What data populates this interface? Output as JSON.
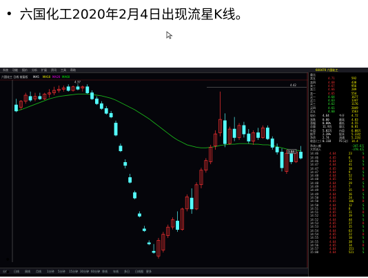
{
  "slide": {
    "bullet": "•",
    "title": "六国化工2020年2月4日出现流星K线。",
    "extra_bullets": [
      "•",
      "•"
    ]
  },
  "terminal": {
    "menu_items": [
      "系统",
      "功能",
      "报价",
      "分析",
      "扩展",
      "资讯",
      "工具",
      "帮助"
    ],
    "chart_header": "六国化工 日线 前复权",
    "indicators": [
      "MA5",
      "MA10",
      "MA20",
      "MA60"
    ],
    "indicator_colors": [
      "#ffffff",
      "#ffff00",
      "#ff00ff",
      "#00ff00"
    ],
    "top_price_label": "4.42",
    "mid_price_label": "4.37",
    "right_box_label": "3.84",
    "colors": {
      "up": "#ff3232",
      "down": "#54ffff",
      "ma": "#19b319",
      "grid": "#7a1d1d",
      "bg": "#05050a"
    },
    "bottom_tabs": [
      "分时",
      "日线",
      "周线",
      "月线",
      "1分钟",
      "5分钟",
      "15分钟",
      "30分钟",
      "60分钟",
      "季线",
      "年线",
      "多日",
      "日线图",
      "更多"
    ],
    "right_panel": {
      "code": "600470",
      "name": "六国化工",
      "order_book": [
        {
          "label": "委比",
          "price": "",
          "vol": "",
          "color": "#ff3232"
        },
        {
          "label": "卖五",
          "price": "4.71",
          "vol": "592"
        },
        {
          "label": "卖四",
          "price": "4.68",
          "vol": "438"
        },
        {
          "label": "卖三",
          "price": "4.67",
          "vol": "956"
        },
        {
          "label": "卖二",
          "price": "4.66",
          "vol": "289"
        },
        {
          "label": "卖一",
          "price": "4.65",
          "vol": "554"
        },
        {
          "label": "买一",
          "price": "4.64",
          "vol": "1677"
        },
        {
          "label": "买二",
          "price": "4.63",
          "vol": "1347"
        },
        {
          "label": "买三",
          "price": "4.62",
          "vol": "1176"
        },
        {
          "label": "买四",
          "price": "4.61",
          "vol": "2049"
        },
        {
          "label": "买五",
          "price": "4.60",
          "vol": "1563"
        }
      ],
      "stats": [
        {
          "label": "现价",
          "value": "4.64",
          "label2": "今开",
          "value2": "4.72"
        },
        {
          "label": "涨跌",
          "value": "0.00",
          "label2": "最高",
          "value2": "4.83"
        },
        {
          "label": "涨幅",
          "value": "0.00%",
          "label2": "最低",
          "value2": "4.55"
        },
        {
          "label": "总量",
          "value": "11.9万",
          "label2": "量比",
          "value2": "0.81"
        },
        {
          "label": "外盘",
          "value": "5.82万",
          "label2": "内盘",
          "value2": "6.08万"
        },
        {
          "label": "换手",
          "value": "2.28%",
          "label2": "股本",
          "value2": "5.22亿"
        },
        {
          "label": "净资",
          "value": "2.74",
          "label2": "流通",
          "value2": "5.22亿"
        },
        {
          "label": "收益(三)",
          "value": "0.110",
          "label2": "PE(动)",
          "value2": "14.4"
        }
      ],
      "flow_labels": [
        "净流入额",
        "大宗流入"
      ],
      "flow_values": [
        "-347.6万",
        "-378.4万"
      ],
      "ticks": [
        {
          "time": "14:46",
          "price": "4.64",
          "vol": "23",
          "dir": "S"
        },
        {
          "time": "14:46",
          "price": "4.65",
          "vol": "6",
          "dir": "B"
        },
        {
          "time": "14:46",
          "price": "4.64",
          "vol": "13",
          "dir": "S"
        },
        {
          "time": "14:47",
          "price": "4.64",
          "vol": "41",
          "dir": "S"
        },
        {
          "time": "14:47",
          "price": "4.65",
          "vol": "18",
          "dir": "B"
        },
        {
          "time": "14:47",
          "price": "4.64",
          "vol": "9",
          "dir": "S"
        },
        {
          "time": "14:48",
          "price": "4.64",
          "vol": "52",
          "dir": "S"
        },
        {
          "time": "14:48",
          "price": "4.65",
          "vol": "11",
          "dir": "B"
        },
        {
          "time": "14:48",
          "price": "4.64",
          "vol": "29",
          "dir": "S"
        },
        {
          "time": "14:49",
          "price": "4.64",
          "vol": "7",
          "dir": "S"
        },
        {
          "time": "14:49",
          "price": "4.65",
          "vol": "35",
          "dir": "B"
        },
        {
          "time": "14:49",
          "price": "4.64",
          "vol": "16",
          "dir": "S"
        },
        {
          "time": "14:50",
          "price": "4.64",
          "vol": "24",
          "dir": "S"
        },
        {
          "time": "14:50",
          "price": "4.65",
          "vol": "106",
          "dir": "B"
        },
        {
          "time": "14:50",
          "price": "4.64",
          "vol": "12",
          "dir": "S"
        },
        {
          "time": "14:51",
          "price": "4.64",
          "vol": "8",
          "dir": "S"
        },
        {
          "time": "14:51",
          "price": "4.65",
          "vol": "31",
          "dir": "B"
        },
        {
          "time": "14:52",
          "price": "4.64",
          "vol": "19",
          "dir": "S"
        },
        {
          "time": "14:52",
          "price": "4.64",
          "vol": "44",
          "dir": "S"
        },
        {
          "time": "14:53",
          "price": "4.65",
          "vol": "27",
          "dir": "B"
        },
        {
          "time": "14:53",
          "price": "4.64",
          "vol": "15",
          "dir": "S"
        },
        {
          "time": "14:54",
          "price": "4.64",
          "vol": "63",
          "dir": "S"
        },
        {
          "time": "14:54",
          "price": "4.65",
          "vol": "22",
          "dir": "B"
        },
        {
          "time": "14:55",
          "price": "4.64",
          "vol": "10",
          "dir": "S"
        },
        {
          "time": "14:55",
          "price": "4.64",
          "vol": "38",
          "dir": "S"
        },
        {
          "time": "14:56",
          "price": "4.65",
          "vol": "14",
          "dir": "B"
        },
        {
          "time": "14:57",
          "price": "4.64",
          "vol": "151",
          "dir": "S"
        },
        {
          "time": "15:00",
          "price": "4.64",
          "vol": "521",
          "dir": "S"
        }
      ]
    },
    "candles": [
      {
        "o": 4.5,
        "h": 4.6,
        "l": 4.38,
        "c": 4.4
      },
      {
        "o": 4.46,
        "h": 4.58,
        "l": 4.42,
        "c": 4.56
      },
      {
        "o": 4.56,
        "h": 4.7,
        "l": 4.52,
        "c": 4.66
      },
      {
        "o": 4.64,
        "h": 4.72,
        "l": 4.55,
        "c": 4.58
      },
      {
        "o": 4.6,
        "h": 4.7,
        "l": 4.56,
        "c": 4.64
      },
      {
        "o": 4.64,
        "h": 4.7,
        "l": 4.58,
        "c": 4.6
      },
      {
        "o": 4.6,
        "h": 4.7,
        "l": 4.58,
        "c": 4.68
      },
      {
        "o": 4.68,
        "h": 4.76,
        "l": 4.62,
        "c": 4.7
      },
      {
        "o": 4.7,
        "h": 4.8,
        "l": 4.66,
        "c": 4.74
      },
      {
        "o": 4.74,
        "h": 4.82,
        "l": 4.7,
        "c": 4.76
      },
      {
        "o": 4.76,
        "h": 4.82,
        "l": 4.72,
        "c": 4.78
      },
      {
        "o": 4.8,
        "h": 4.84,
        "l": 4.72,
        "c": 4.74
      },
      {
        "o": 4.74,
        "h": 4.82,
        "l": 4.72,
        "c": 4.8
      },
      {
        "o": 4.8,
        "h": 4.84,
        "l": 4.74,
        "c": 4.76
      },
      {
        "o": 4.78,
        "h": 4.82,
        "l": 4.72,
        "c": 4.8
      },
      {
        "o": 4.8,
        "h": 4.84,
        "l": 4.68,
        "c": 4.7
      },
      {
        "o": 4.7,
        "h": 4.74,
        "l": 4.58,
        "c": 4.6
      },
      {
        "o": 4.6,
        "h": 4.64,
        "l": 4.5,
        "c": 4.52
      },
      {
        "o": 4.52,
        "h": 4.56,
        "l": 4.42,
        "c": 4.44
      },
      {
        "o": 4.44,
        "h": 4.48,
        "l": 4.34,
        "c": 4.36
      },
      {
        "o": 4.36,
        "h": 4.4,
        "l": 4.28,
        "c": 4.3
      },
      {
        "o": 4.2,
        "h": 4.24,
        "l": 3.98,
        "c": 4.0
      },
      {
        "o": 3.82,
        "h": 3.86,
        "l": 3.72,
        "c": 3.74
      },
      {
        "o": 3.55,
        "h": 3.6,
        "l": 3.45,
        "c": 3.5
      },
      {
        "o": 3.3,
        "h": 3.36,
        "l": 3.2,
        "c": 3.22
      },
      {
        "o": 3.05,
        "h": 3.08,
        "l": 2.94,
        "c": 2.96
      },
      {
        "o": 2.7,
        "h": 2.74,
        "l": 2.64,
        "c": 2.66
      },
      {
        "o": 2.45,
        "h": 2.5,
        "l": 2.4,
        "c": 2.42
      },
      {
        "o": 2.22,
        "h": 2.26,
        "l": 2.18,
        "c": 2.2
      },
      {
        "o": 2.08,
        "h": 2.2,
        "l": 2.04,
        "c": 2.06
      },
      {
        "o": 2.0,
        "h": 2.3,
        "l": 1.96,
        "c": 2.26
      },
      {
        "o": 2.1,
        "h": 2.4,
        "l": 2.06,
        "c": 2.36
      },
      {
        "o": 2.34,
        "h": 2.52,
        "l": 2.3,
        "c": 2.48
      },
      {
        "o": 2.48,
        "h": 2.64,
        "l": 2.44,
        "c": 2.6
      },
      {
        "o": 2.58,
        "h": 2.74,
        "l": 2.4,
        "c": 2.44
      },
      {
        "o": 2.44,
        "h": 2.8,
        "l": 2.42,
        "c": 2.78
      },
      {
        "o": 2.78,
        "h": 3.02,
        "l": 2.74,
        "c": 2.98
      },
      {
        "o": 2.96,
        "h": 3.12,
        "l": 2.7,
        "c": 2.78
      },
      {
        "o": 2.78,
        "h": 3.22,
        "l": 2.76,
        "c": 3.18
      },
      {
        "o": 3.18,
        "h": 3.46,
        "l": 3.12,
        "c": 3.42
      },
      {
        "o": 3.42,
        "h": 3.62,
        "l": 3.38,
        "c": 3.58
      },
      {
        "o": 3.56,
        "h": 3.84,
        "l": 3.52,
        "c": 3.8
      },
      {
        "o": 3.82,
        "h": 4.08,
        "l": 3.76,
        "c": 4.02
      },
      {
        "o": 4.04,
        "h": 4.72,
        "l": 3.98,
        "c": 4.26
      },
      {
        "o": 4.24,
        "h": 4.36,
        "l": 3.8,
        "c": 3.86
      },
      {
        "o": 3.86,
        "h": 4.14,
        "l": 3.84,
        "c": 4.1
      },
      {
        "o": 4.1,
        "h": 4.3,
        "l": 3.9,
        "c": 3.96
      },
      {
        "o": 3.96,
        "h": 4.2,
        "l": 3.92,
        "c": 4.16
      },
      {
        "o": 4.16,
        "h": 4.22,
        "l": 3.96,
        "c": 4.02
      },
      {
        "o": 4.02,
        "h": 4.1,
        "l": 3.86,
        "c": 3.9
      },
      {
        "o": 3.9,
        "h": 4.08,
        "l": 3.84,
        "c": 4.04
      },
      {
        "o": 4.04,
        "h": 4.12,
        "l": 3.92,
        "c": 3.96
      },
      {
        "o": 3.96,
        "h": 4.16,
        "l": 3.94,
        "c": 4.12
      },
      {
        "o": 4.12,
        "h": 4.16,
        "l": 3.92,
        "c": 3.94
      },
      {
        "o": 3.94,
        "h": 3.98,
        "l": 3.76,
        "c": 3.8
      },
      {
        "o": 3.8,
        "h": 3.86,
        "l": 3.68,
        "c": 3.72
      },
      {
        "o": 3.72,
        "h": 3.78,
        "l": 3.4,
        "c": 3.46
      },
      {
        "o": 3.4,
        "h": 3.76,
        "l": 3.36,
        "c": 3.7
      },
      {
        "o": 3.7,
        "h": 3.76,
        "l": 3.52,
        "c": 3.56
      },
      {
        "o": 3.56,
        "h": 3.74,
        "l": 3.54,
        "c": 3.72
      },
      {
        "o": 3.72,
        "h": 3.82,
        "l": 3.6,
        "c": 3.62
      }
    ],
    "ma": [
      4.4,
      4.42,
      4.45,
      4.48,
      4.51,
      4.54,
      4.57,
      4.6,
      4.62,
      4.64,
      4.65,
      4.66,
      4.67,
      4.68,
      4.68,
      4.68,
      4.67,
      4.66,
      4.65,
      4.63,
      4.61,
      4.58,
      4.54,
      4.5,
      4.46,
      4.42,
      4.37,
      4.32,
      4.27,
      4.21,
      4.15,
      4.09,
      4.03,
      3.97,
      3.92,
      3.88,
      3.84,
      3.82,
      3.8,
      3.79,
      3.79,
      3.8,
      3.81,
      3.83,
      3.84,
      3.85,
      3.85,
      3.86,
      3.86,
      3.86,
      3.85,
      3.85,
      3.84,
      3.84,
      3.83,
      3.81,
      3.79,
      3.77,
      3.76,
      3.75,
      3.74
    ]
  }
}
